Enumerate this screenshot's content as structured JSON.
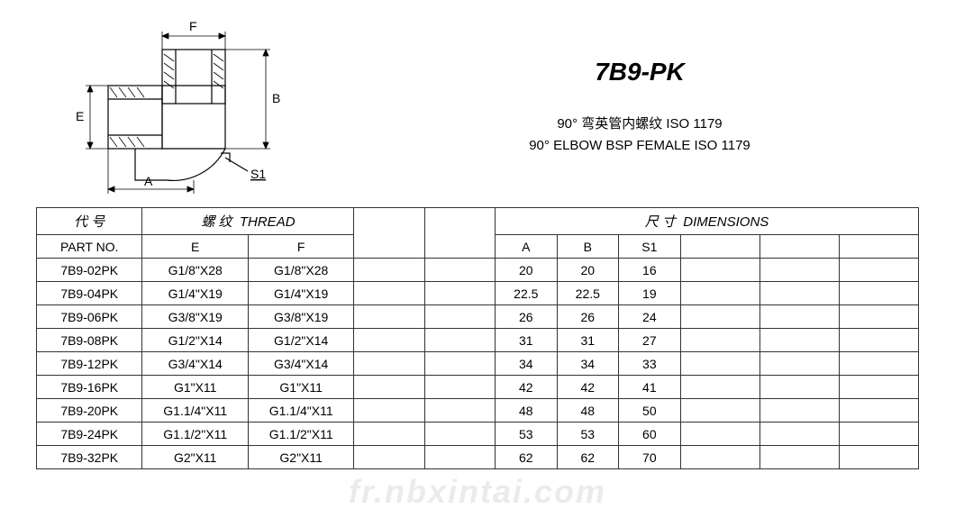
{
  "title": "7B9-PK",
  "desc_cn": "90° 弯英管内螺纹 ISO 1179",
  "desc_en": "90° ELBOW BSP FEMALE  ISO 1179",
  "watermark": "fr.nbxintai.com",
  "diagram": {
    "labels": {
      "A": "A",
      "B": "B",
      "E": "E",
      "F": "F",
      "S1": "S1"
    },
    "stroke": "#000000",
    "hatch": "#000000",
    "line_width": 1.2,
    "hatch_width": 0.8
  },
  "table": {
    "header_group_part_cn": "代 号",
    "header_group_part_en": "PART NO.",
    "header_group_thread_cn": "螺 纹",
    "header_group_thread_en": "THREAD",
    "header_group_dim_cn": "尺 寸",
    "header_group_dim_en": "DIMENSIONS",
    "col_E": "E",
    "col_F": "F",
    "col_A": "A",
    "col_B": "B",
    "col_S1": "S1",
    "columns_layout": {
      "part_no_w": "12%",
      "thread_w": "12%",
      "blank_w": "8%",
      "dim_w": "7%"
    },
    "rows": [
      {
        "pn": "7B9-02PK",
        "E": "G1/8\"X28",
        "F": "G1/8\"X28",
        "A": "20",
        "B": "20",
        "S1": "16"
      },
      {
        "pn": "7B9-04PK",
        "E": "G1/4\"X19",
        "F": "G1/4\"X19",
        "A": "22.5",
        "B": "22.5",
        "S1": "19"
      },
      {
        "pn": "7B9-06PK",
        "E": "G3/8\"X19",
        "F": "G3/8\"X19",
        "A": "26",
        "B": "26",
        "S1": "24"
      },
      {
        "pn": "7B9-08PK",
        "E": "G1/2\"X14",
        "F": "G1/2\"X14",
        "A": "31",
        "B": "31",
        "S1": "27"
      },
      {
        "pn": "7B9-12PK",
        "E": "G3/4\"X14",
        "F": "G3/4\"X14",
        "A": "34",
        "B": "34",
        "S1": "33"
      },
      {
        "pn": "7B9-16PK",
        "E": "G1\"X11",
        "F": "G1\"X11",
        "A": "42",
        "B": "42",
        "S1": "41"
      },
      {
        "pn": "7B9-20PK",
        "E": "G1.1/4\"X11",
        "F": "G1.1/4\"X11",
        "A": "48",
        "B": "48",
        "S1": "50"
      },
      {
        "pn": "7B9-24PK",
        "E": "G1.1/2\"X11",
        "F": "G1.1/2\"X11",
        "A": "53",
        "B": "53",
        "S1": "60"
      },
      {
        "pn": "7B9-32PK",
        "E": "G2\"X11",
        "F": "G2\"X11",
        "A": "62",
        "B": "62",
        "S1": "70"
      }
    ]
  },
  "colors": {
    "border": "#333333",
    "text": "#000000",
    "background": "#ffffff",
    "watermark": "rgba(0,0,0,0.08)"
  }
}
